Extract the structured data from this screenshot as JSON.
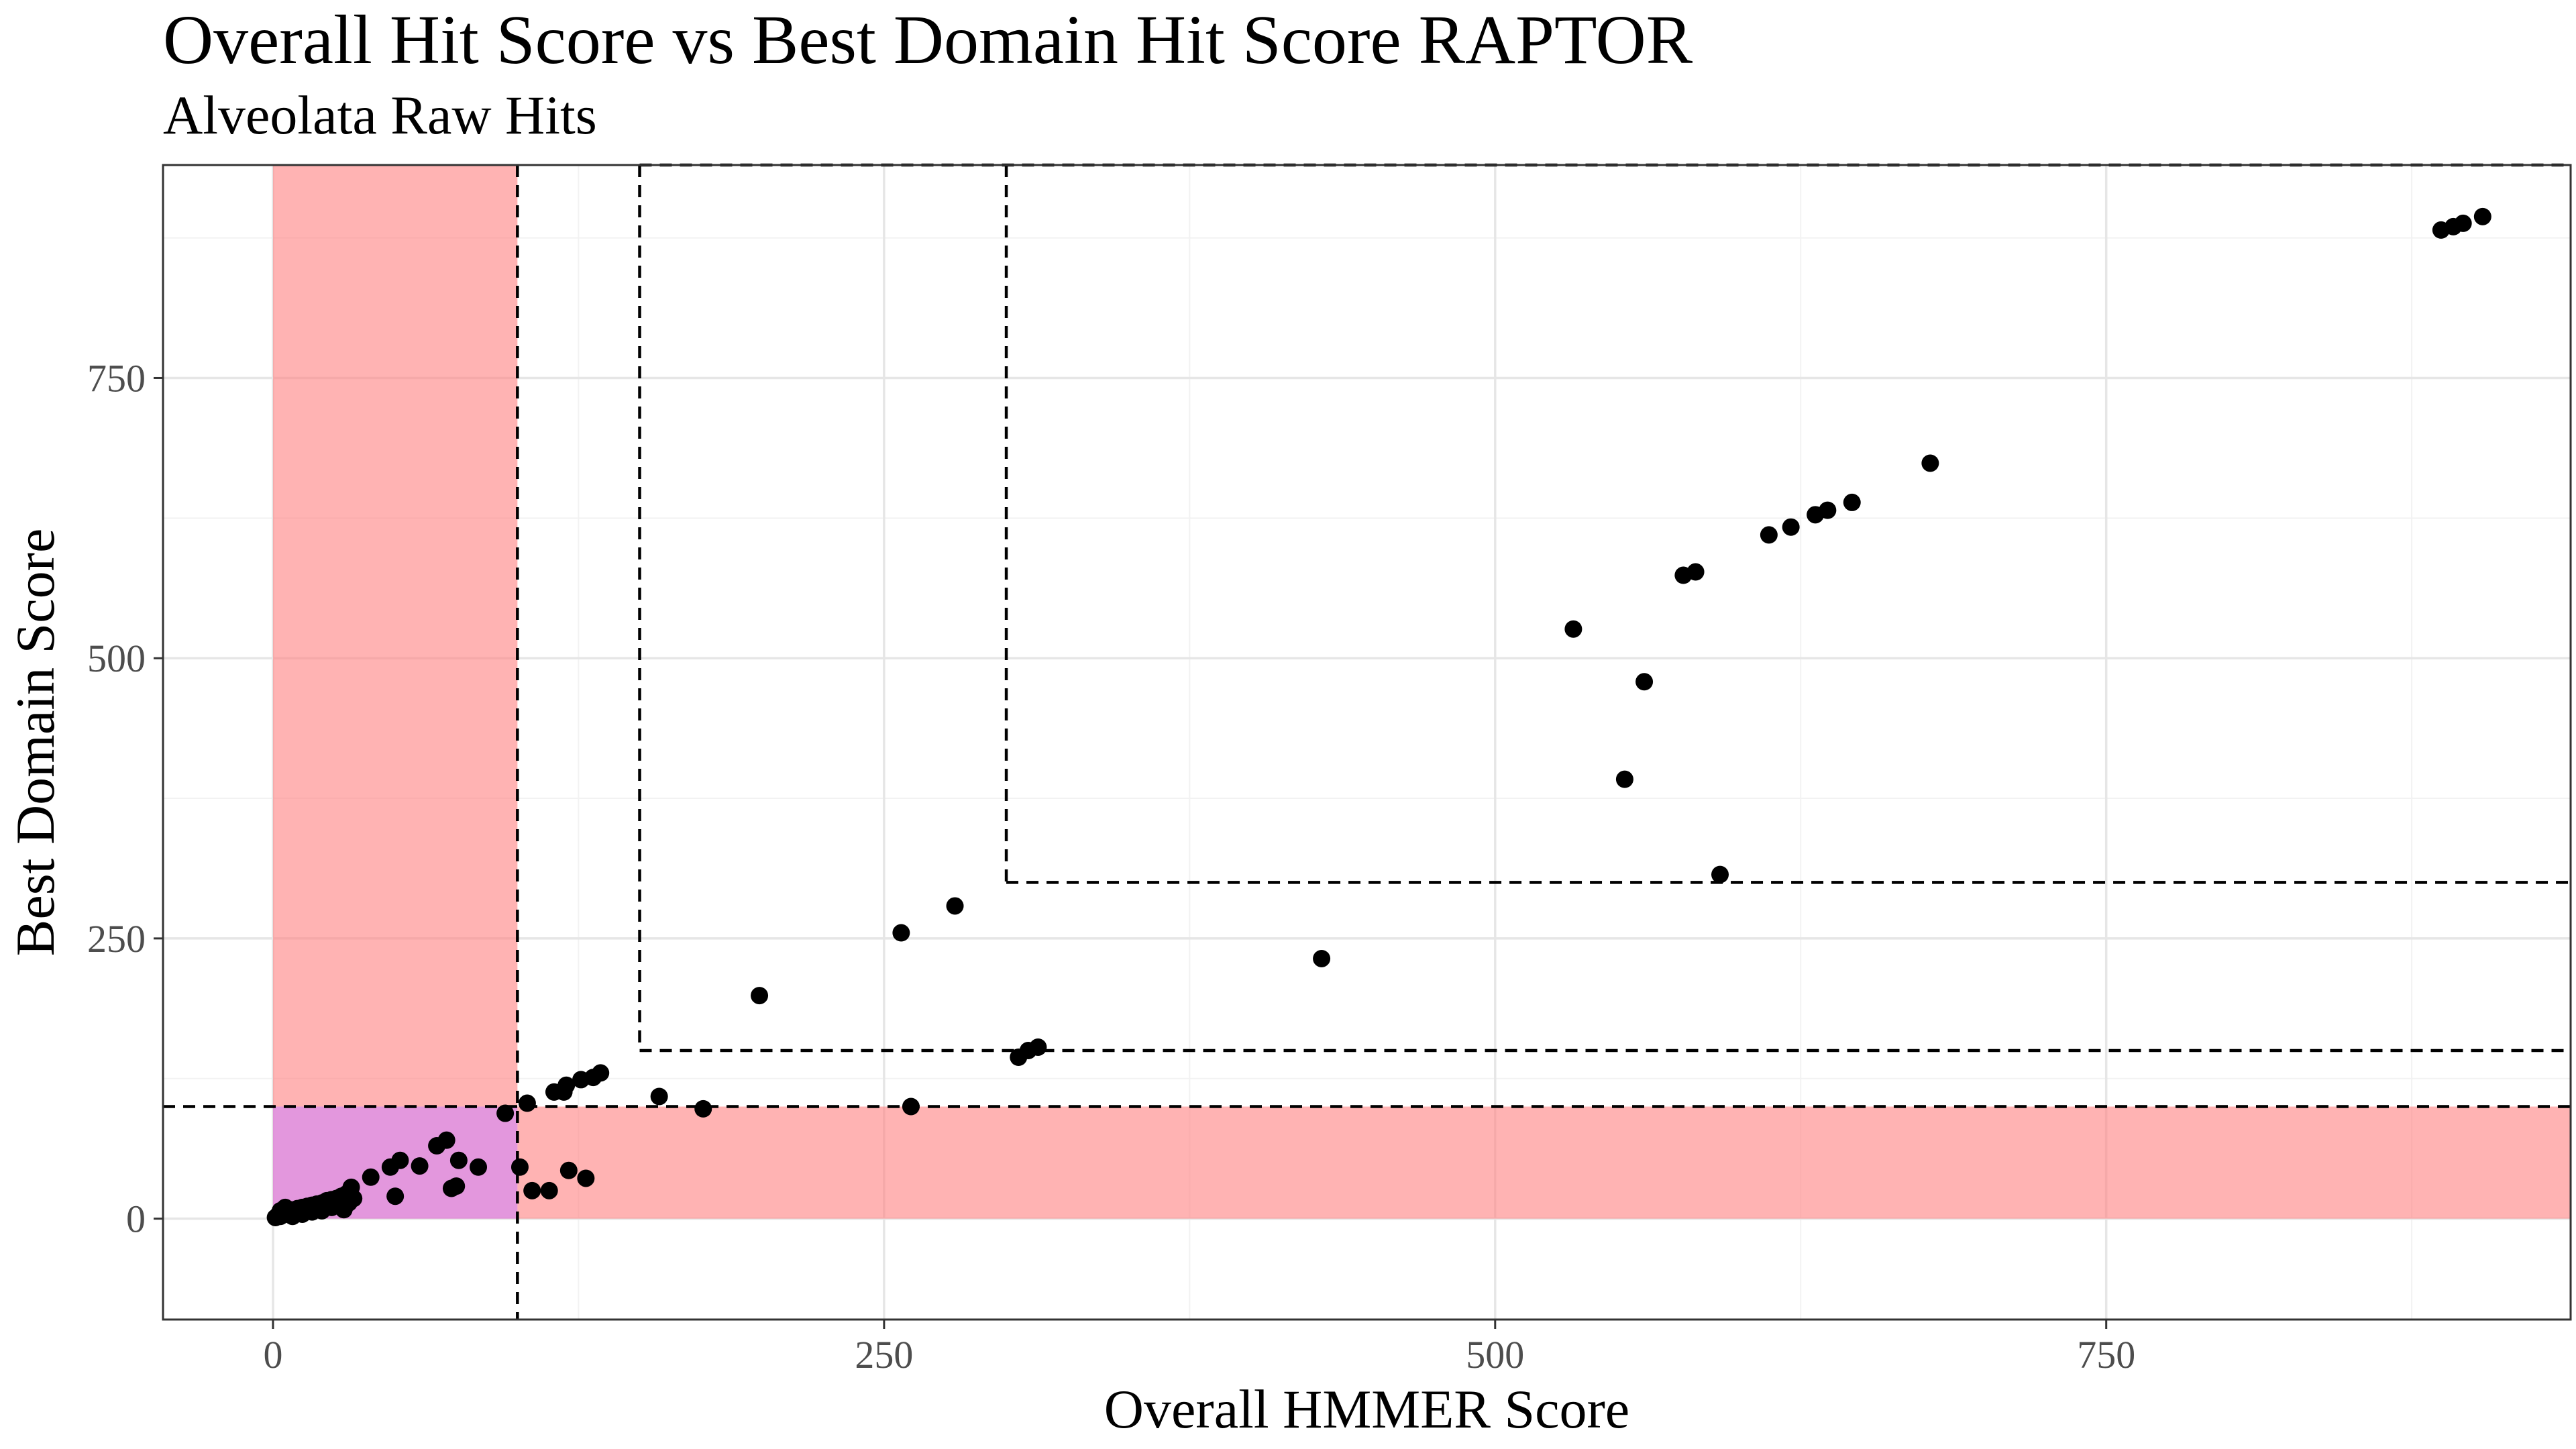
{
  "chart_data": {
    "type": "scatter",
    "title": "Overall Hit Score vs Best Domain Hit Score RAPTOR",
    "subtitle": "Alveolata Raw Hits",
    "xlabel": "Overall HMMER Score",
    "ylabel": "Best Domain Score",
    "xlim": [
      -45,
      940
    ],
    "ylim": [
      -90,
      940
    ],
    "x_ticks": [
      0,
      250,
      500,
      750
    ],
    "y_ticks": [
      0,
      250,
      500,
      750
    ],
    "x_tick_labels": [
      "0",
      "250",
      "500",
      "750"
    ],
    "y_tick_labels": [
      "0",
      "250",
      "500",
      "750"
    ],
    "grid": true,
    "point_color": "#000000",
    "shaded_regions": [
      {
        "x": [
          0,
          100
        ],
        "y": [
          0,
          940
        ],
        "color": "#ff8080",
        "opacity": 0.6
      },
      {
        "x": [
          100,
          940
        ],
        "y": [
          0,
          100
        ],
        "color": "#ff8080",
        "opacity": 0.6
      },
      {
        "x": [
          0,
          100
        ],
        "y": [
          0,
          100
        ],
        "color": "#cc80ff",
        "opacity": 0.55
      }
    ],
    "threshold_lines": [
      {
        "orientation": "vertical",
        "x": 100,
        "y_from": -90,
        "y_to": 940
      },
      {
        "orientation": "horizontal",
        "y": 100,
        "x_from": -45,
        "x_to": 940
      },
      {
        "orientation": "vertical",
        "x": 150,
        "y_from": 150,
        "y_to": 940
      },
      {
        "orientation": "horizontal",
        "y": 150,
        "x_from": 150,
        "x_to": 940
      },
      {
        "orientation": "horizontal",
        "y": 940,
        "x_from": 150,
        "x_to": 940
      },
      {
        "orientation": "vertical",
        "x": 300,
        "y_from": 300,
        "y_to": 940
      },
      {
        "orientation": "horizontal",
        "y": 300,
        "x_from": 300,
        "x_to": 940
      }
    ],
    "points": [
      {
        "x": 1,
        "y": 1
      },
      {
        "x": 2,
        "y": 3
      },
      {
        "x": 3,
        "y": 2
      },
      {
        "x": 4,
        "y": 5
      },
      {
        "x": 5,
        "y": 4
      },
      {
        "x": 6,
        "y": 6
      },
      {
        "x": 7,
        "y": 8
      },
      {
        "x": 8,
        "y": 5
      },
      {
        "x": 9,
        "y": 7
      },
      {
        "x": 10,
        "y": 9
      },
      {
        "x": 11,
        "y": 6
      },
      {
        "x": 12,
        "y": 10
      },
      {
        "x": 13,
        "y": 8
      },
      {
        "x": 14,
        "y": 11
      },
      {
        "x": 15,
        "y": 9
      },
      {
        "x": 16,
        "y": 12
      },
      {
        "x": 17,
        "y": 10
      },
      {
        "x": 18,
        "y": 13
      },
      {
        "x": 19,
        "y": 11
      },
      {
        "x": 20,
        "y": 14
      },
      {
        "x": 21,
        "y": 12
      },
      {
        "x": 22,
        "y": 16
      },
      {
        "x": 23,
        "y": 13
      },
      {
        "x": 24,
        "y": 17
      },
      {
        "x": 25,
        "y": 15
      },
      {
        "x": 26,
        "y": 18
      },
      {
        "x": 27,
        "y": 16
      },
      {
        "x": 28,
        "y": 20
      },
      {
        "x": 29,
        "y": 8
      },
      {
        "x": 30,
        "y": 22
      },
      {
        "x": 31,
        "y": 14
      },
      {
        "x": 32,
        "y": 28
      },
      {
        "x": 33,
        "y": 18
      },
      {
        "x": 5,
        "y": 10
      },
      {
        "x": 8,
        "y": 2
      },
      {
        "x": 12,
        "y": 4
      },
      {
        "x": 16,
        "y": 6
      },
      {
        "x": 20,
        "y": 7
      },
      {
        "x": 24,
        "y": 10
      },
      {
        "x": 3,
        "y": 7
      },
      {
        "x": 40,
        "y": 37
      },
      {
        "x": 48,
        "y": 46
      },
      {
        "x": 50,
        "y": 20
      },
      {
        "x": 52,
        "y": 52
      },
      {
        "x": 60,
        "y": 47
      },
      {
        "x": 67,
        "y": 65
      },
      {
        "x": 71,
        "y": 70
      },
      {
        "x": 73,
        "y": 27
      },
      {
        "x": 75,
        "y": 29
      },
      {
        "x": 76,
        "y": 52
      },
      {
        "x": 84,
        "y": 46
      },
      {
        "x": 95,
        "y": 94
      },
      {
        "x": 101,
        "y": 46
      },
      {
        "x": 104,
        "y": 103
      },
      {
        "x": 106,
        "y": 25
      },
      {
        "x": 113,
        "y": 25
      },
      {
        "x": 115,
        "y": 113
      },
      {
        "x": 119,
        "y": 113
      },
      {
        "x": 120,
        "y": 119
      },
      {
        "x": 121,
        "y": 43
      },
      {
        "x": 126,
        "y": 124
      },
      {
        "x": 128,
        "y": 36
      },
      {
        "x": 131,
        "y": 126
      },
      {
        "x": 134,
        "y": 130
      },
      {
        "x": 158,
        "y": 109
      },
      {
        "x": 176,
        "y": 98
      },
      {
        "x": 199,
        "y": 199
      },
      {
        "x": 257,
        "y": 255
      },
      {
        "x": 261,
        "y": 100
      },
      {
        "x": 279,
        "y": 279
      },
      {
        "x": 305,
        "y": 144
      },
      {
        "x": 309,
        "y": 150
      },
      {
        "x": 313,
        "y": 153
      },
      {
        "x": 429,
        "y": 232
      },
      {
        "x": 532,
        "y": 526
      },
      {
        "x": 553,
        "y": 392
      },
      {
        "x": 561,
        "y": 479
      },
      {
        "x": 577,
        "y": 574
      },
      {
        "x": 582,
        "y": 577
      },
      {
        "x": 592,
        "y": 307
      },
      {
        "x": 612,
        "y": 610
      },
      {
        "x": 621,
        "y": 617
      },
      {
        "x": 631,
        "y": 628
      },
      {
        "x": 636,
        "y": 632
      },
      {
        "x": 646,
        "y": 639
      },
      {
        "x": 678,
        "y": 674
      },
      {
        "x": 887,
        "y": 882
      },
      {
        "x": 892,
        "y": 885
      },
      {
        "x": 896,
        "y": 888
      },
      {
        "x": 904,
        "y": 894
      }
    ]
  }
}
